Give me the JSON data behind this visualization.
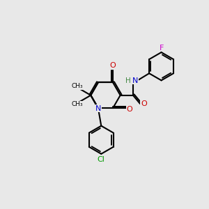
{
  "bg_color": "#e8e8e8",
  "atom_colors": {
    "C": "#000000",
    "N": "#0000cc",
    "O": "#cc0000",
    "F": "#cc00cc",
    "Cl": "#009900",
    "H": "#448844"
  },
  "bond_color": "#000000",
  "bond_width": 1.5
}
